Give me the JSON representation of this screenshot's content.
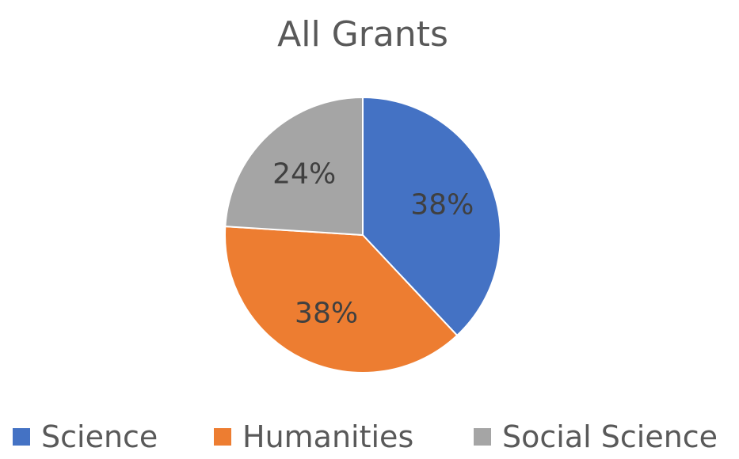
{
  "chart_data": {
    "type": "pie",
    "title": "All Grants",
    "categories": [
      "Science",
      "Humanities",
      "Social Science"
    ],
    "values": [
      38,
      38,
      24
    ],
    "labels": [
      "38%",
      "38%",
      "24%"
    ],
    "colors": [
      "#4472C4",
      "#ED7D31",
      "#A5A5A5"
    ],
    "start_angle_deg": 0,
    "direction": "clockwise",
    "legend_position": "bottom"
  }
}
